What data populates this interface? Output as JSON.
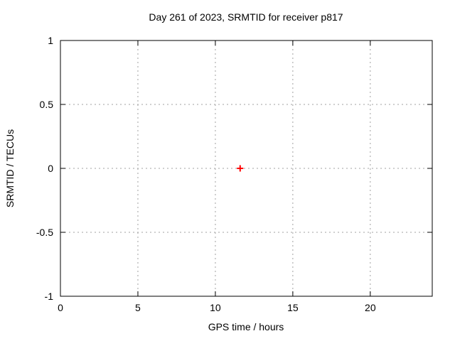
{
  "chart_data": {
    "type": "scatter",
    "title": "Day 261 of 2023, SRMTID for receiver p817",
    "xlabel": "GPS time / hours",
    "ylabel": "SRMTID / TECUs",
    "xlim": [
      0,
      24
    ],
    "ylim": [
      -1,
      1
    ],
    "xticks": [
      0,
      5,
      10,
      15,
      20
    ],
    "yticks": [
      -1,
      -0.5,
      0,
      0.5,
      1
    ],
    "grid": true,
    "legend": "none",
    "series": [
      {
        "name": "SRMTID",
        "marker": "plus",
        "color": "#ff0000",
        "points": [
          {
            "x": 11.6,
            "y": 0.0
          }
        ]
      }
    ],
    "colors": {
      "background": "#ffffff",
      "axis": "#000000",
      "grid": "#a0a0a0",
      "text": "#000000"
    }
  }
}
